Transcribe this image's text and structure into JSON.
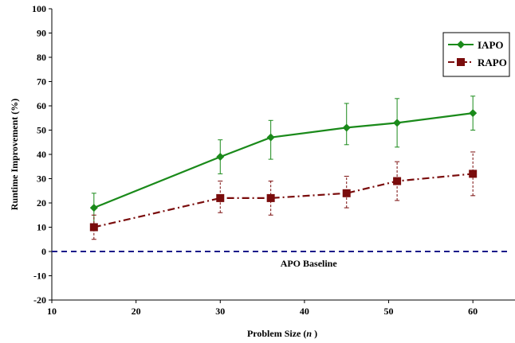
{
  "chart_data": {
    "type": "line",
    "title": "",
    "xlabel": "Problem Size (",
    "xlabel_var": "n",
    "xlabel_end": ")",
    "ylabel": "Runtime Improvement (%)",
    "xlim": [
      10,
      65
    ],
    "ylim": [
      -20,
      100
    ],
    "xticks": [
      10,
      20,
      30,
      40,
      50,
      60
    ],
    "yticks": [
      -20,
      -10,
      0,
      10,
      20,
      30,
      40,
      50,
      60,
      70,
      80,
      90,
      100
    ],
    "grid": false,
    "legend_position": "top-right",
    "series": [
      {
        "name": "IAPO",
        "color": "#1a8a1a",
        "marker": "diamond",
        "line_style": "solid",
        "points": [
          {
            "x": 15,
            "y": 18,
            "err_low": 10,
            "err_high": 24
          },
          {
            "x": 30,
            "y": 39,
            "err_low": 32,
            "err_high": 46
          },
          {
            "x": 36,
            "y": 47,
            "err_low": 38,
            "err_high": 54
          },
          {
            "x": 45,
            "y": 51,
            "err_low": 44,
            "err_high": 61
          },
          {
            "x": 51,
            "y": 53,
            "err_low": 43,
            "err_high": 63
          },
          {
            "x": 60,
            "y": 57,
            "err_low": 50,
            "err_high": 64
          }
        ]
      },
      {
        "name": "RAPO",
        "color": "#7a0c0c",
        "marker": "square",
        "line_style": "dash-dot",
        "points": [
          {
            "x": 15,
            "y": 10,
            "err_low": 5,
            "err_high": 15
          },
          {
            "x": 30,
            "y": 22,
            "err_low": 16,
            "err_high": 29
          },
          {
            "x": 36,
            "y": 22,
            "err_low": 15,
            "err_high": 29
          },
          {
            "x": 45,
            "y": 24,
            "err_low": 18,
            "err_high": 31
          },
          {
            "x": 51,
            "y": 29,
            "err_low": 21,
            "err_high": 37
          },
          {
            "x": 60,
            "y": 32,
            "err_low": 23,
            "err_high": 41
          }
        ]
      }
    ],
    "baseline": {
      "y": 0,
      "label": "APO Baseline",
      "label_x": 40.5,
      "color": "#1a1a8a"
    }
  }
}
